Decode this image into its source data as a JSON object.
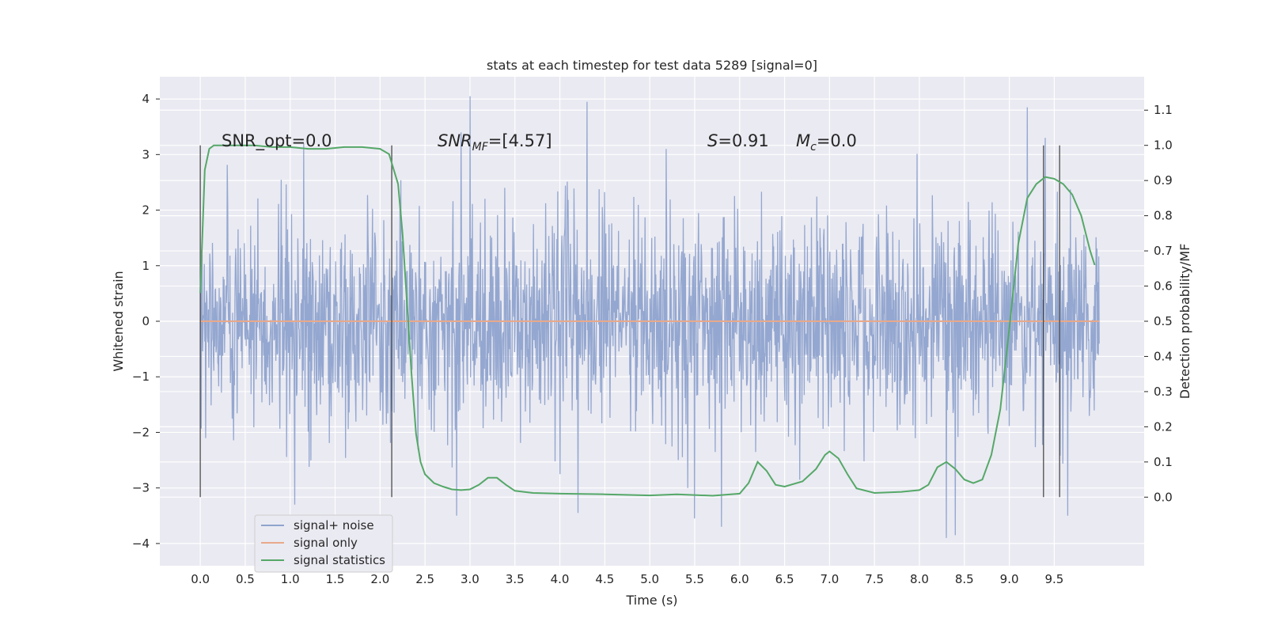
{
  "chart_data": {
    "type": "line",
    "title": "stats at each timestep for test data 5289 [signal=0]",
    "xlabel": "Time (s)",
    "ylabel": "Whitened strain",
    "y2label": "Detection probability/MF",
    "xlim": [
      -0.45,
      10.5
    ],
    "ylim": [
      -4.4,
      4.4
    ],
    "y2lim": [
      -0.195,
      1.195
    ],
    "x_ticks": [
      "0.0",
      "0.5",
      "1.0",
      "1.5",
      "2.0",
      "2.5",
      "3.0",
      "3.5",
      "4.0",
      "4.5",
      "5.0",
      "5.5",
      "6.0",
      "6.5",
      "7.0",
      "7.5",
      "8.0",
      "8.5",
      "9.0",
      "9.5"
    ],
    "y_ticks": [
      "4",
      "3",
      "2",
      "1",
      "0",
      "−1",
      "−2",
      "−3",
      "−4"
    ],
    "y2_ticks": [
      "1.1",
      "1.0",
      "0.9",
      "0.8",
      "0.7",
      "0.6",
      "0.5",
      "0.4",
      "0.3",
      "0.2",
      "0.1",
      "0.0"
    ],
    "grid": true,
    "legend_position": "lower-left",
    "annotations": {
      "snr_opt": "SNR_opt=0.0",
      "snr_mf_sym": "SNR",
      "snr_mf_sub": "MF",
      "snr_mf_rest": "=[4.57]",
      "s_sym": "S",
      "s_rest": "=0.91",
      "mc_sym": "M",
      "mc_sub": "c",
      "mc_rest": "=0.0"
    },
    "series": [
      {
        "name": "signal+ noise",
        "color": "#8fa3cd",
        "x_range": [
          0.0,
          10.0
        ],
        "typical_envelope": [
          -1.8,
          1.9
        ],
        "peaks": [
          {
            "x": 3.0,
            "y": 4.05
          },
          {
            "x": 4.3,
            "y": 3.95
          },
          {
            "x": 9.2,
            "y": 3.85
          },
          {
            "x": 2.9,
            "y": 3.4
          },
          {
            "x": 1.15,
            "y": 3.2
          },
          {
            "x": 9.4,
            "y": 3.3
          },
          {
            "x": 8.3,
            "y": -3.9
          },
          {
            "x": 5.5,
            "y": -3.55
          },
          {
            "x": 5.8,
            "y": -3.7
          },
          {
            "x": 8.4,
            "y": -3.85
          },
          {
            "x": 1.05,
            "y": -3.3
          },
          {
            "x": 9.65,
            "y": -3.5
          },
          {
            "x": 4.2,
            "y": -3.45
          },
          {
            "x": 2.85,
            "y": -3.5
          }
        ]
      },
      {
        "name": "signal only",
        "color": "#e8a98b",
        "x": [
          0.0,
          10.0
        ],
        "y": [
          0.0,
          0.0
        ]
      },
      {
        "name": "signal statistics",
        "color": "#55a868",
        "axis": "right",
        "x": [
          0.0,
          0.05,
          0.1,
          0.15,
          0.25,
          0.4,
          0.6,
          0.8,
          1.0,
          1.2,
          1.4,
          1.6,
          1.8,
          2.0,
          2.1,
          2.2,
          2.25,
          2.3,
          2.35,
          2.4,
          2.45,
          2.5,
          2.6,
          2.7,
          2.8,
          2.9,
          3.0,
          3.1,
          3.2,
          3.3,
          3.4,
          3.5,
          3.7,
          4.0,
          4.5,
          5.0,
          5.3,
          5.7,
          6.0,
          6.1,
          6.2,
          6.3,
          6.4,
          6.5,
          6.7,
          6.85,
          6.95,
          7.0,
          7.1,
          7.2,
          7.3,
          7.5,
          7.8,
          8.0,
          8.1,
          8.2,
          8.3,
          8.4,
          8.5,
          8.6,
          8.7,
          8.8,
          8.9,
          9.0,
          9.1,
          9.2,
          9.3,
          9.4,
          9.5,
          9.6,
          9.7,
          9.8,
          9.9,
          9.95
        ],
        "y": [
          0.58,
          0.93,
          0.99,
          1.0,
          1.0,
          1.0,
          1.0,
          0.995,
          0.995,
          0.99,
          0.99,
          0.995,
          0.995,
          0.99,
          0.975,
          0.89,
          0.75,
          0.55,
          0.35,
          0.18,
          0.1,
          0.065,
          0.04,
          0.03,
          0.022,
          0.02,
          0.022,
          0.035,
          0.055,
          0.055,
          0.035,
          0.018,
          0.012,
          0.01,
          0.008,
          0.005,
          0.008,
          0.004,
          0.01,
          0.04,
          0.1,
          0.075,
          0.035,
          0.03,
          0.045,
          0.08,
          0.12,
          0.13,
          0.11,
          0.065,
          0.025,
          0.012,
          0.015,
          0.02,
          0.035,
          0.085,
          0.1,
          0.08,
          0.05,
          0.04,
          0.05,
          0.12,
          0.25,
          0.48,
          0.72,
          0.85,
          0.89,
          0.91,
          0.905,
          0.89,
          0.86,
          0.8,
          0.7,
          0.66
        ]
      }
    ],
    "vertical_markers_x": [
      0.0,
      2.13,
      9.38,
      9.56
    ]
  }
}
